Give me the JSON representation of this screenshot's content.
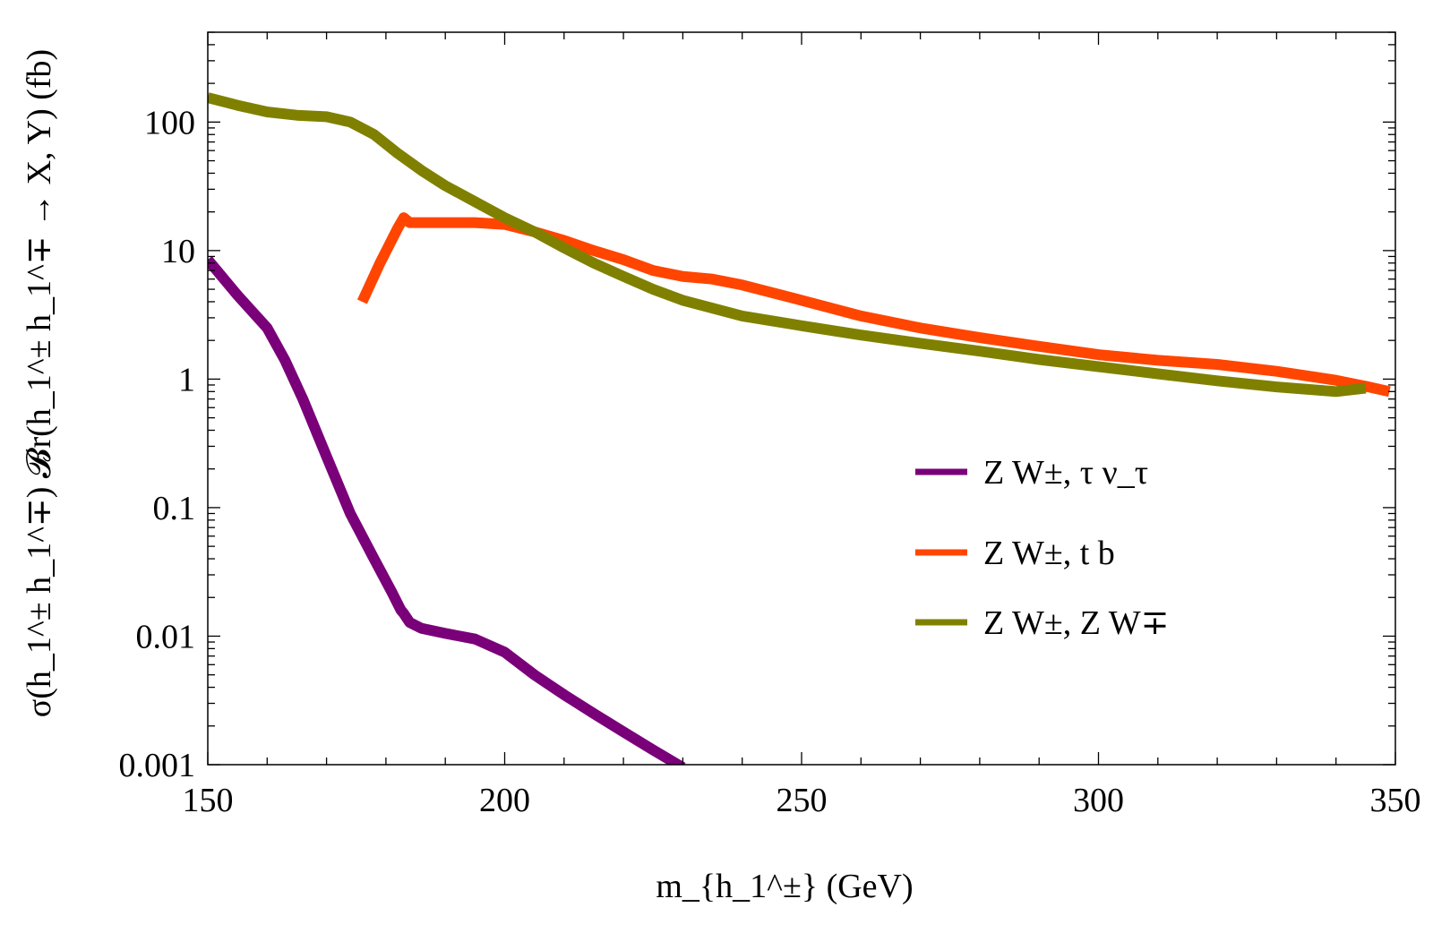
{
  "chart_data": {
    "type": "line",
    "title": "",
    "xlabel": "m_{h_1^±}  (GeV)",
    "ylabel": "σ(h_1^± h_1^∓) 𝓑r(h_1^± h_1^∓ → X, Y)  (fb)",
    "x_scale": "linear",
    "y_scale": "log",
    "xlim": [
      150,
      350
    ],
    "ylim": [
      0.001,
      500
    ],
    "x_ticks": [
      150,
      200,
      250,
      300,
      350
    ],
    "x_tick_labels": [
      "150",
      "200",
      "250",
      "300",
      "350"
    ],
    "y_ticks": [
      0.001,
      0.01,
      0.1,
      1,
      10,
      100
    ],
    "y_tick_labels": [
      "0.001",
      "0.01",
      "0.1",
      "1",
      "10",
      "100"
    ],
    "legend_position": "center-right",
    "series": [
      {
        "name": "Z W±, τ ν_τ",
        "color": "#7a007a",
        "x": [
          150,
          155,
          160,
          163,
          166,
          170,
          174,
          178,
          181,
          182.5,
          183,
          184,
          186,
          190,
          195,
          200,
          205,
          210,
          215,
          220,
          225,
          230
        ],
        "y": [
          8.5,
          4.5,
          2.5,
          1.4,
          0.7,
          0.25,
          0.09,
          0.04,
          0.022,
          0.016,
          0.015,
          0.0128,
          0.0115,
          0.0105,
          0.0095,
          0.0075,
          0.005,
          0.0035,
          0.0025,
          0.0018,
          0.0013,
          0.00095
        ]
      },
      {
        "name": "Z W±, t b",
        "color": "#ff4500",
        "x": [
          176,
          179,
          182,
          183,
          184,
          190,
          195,
          200,
          205,
          210,
          215,
          220,
          225,
          230,
          235,
          240,
          250,
          260,
          270,
          280,
          290,
          300,
          310,
          320,
          330,
          340,
          345,
          349
        ],
        "y": [
          4,
          8,
          15,
          18,
          16.5,
          16.5,
          16.5,
          16,
          14,
          12,
          10,
          8.5,
          7,
          6.3,
          6,
          5.4,
          4.1,
          3.1,
          2.5,
          2.1,
          1.8,
          1.55,
          1.4,
          1.3,
          1.15,
          0.98,
          0.88,
          0.8
        ]
      },
      {
        "name": "Z W±, Z W∓",
        "color": "#808000",
        "x": [
          150,
          155,
          160,
          165,
          170,
          174,
          178,
          182,
          186,
          190,
          195,
          200,
          205,
          210,
          215,
          220,
          225,
          230,
          240,
          250,
          260,
          270,
          280,
          290,
          300,
          310,
          320,
          330,
          340,
          345
        ],
        "y": [
          155,
          135,
          120,
          113,
          110,
          100,
          80,
          57,
          42,
          32,
          24,
          18,
          14,
          10.5,
          8,
          6.3,
          5,
          4.1,
          3.1,
          2.6,
          2.2,
          1.9,
          1.65,
          1.42,
          1.25,
          1.1,
          0.97,
          0.87,
          0.8,
          0.85
        ]
      }
    ]
  }
}
